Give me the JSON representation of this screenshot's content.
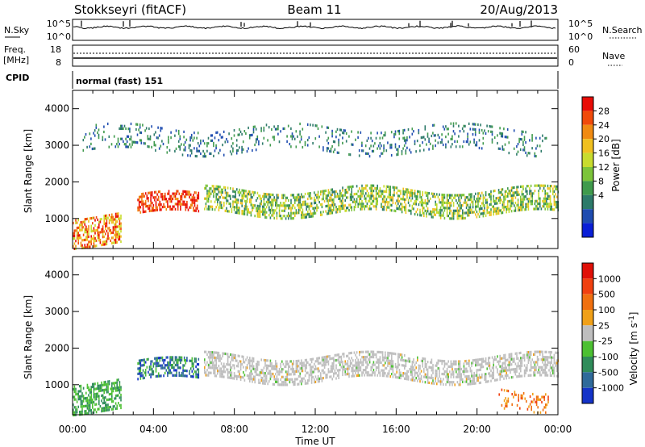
{
  "header": {
    "station": "Stokkseyri (fitACF)",
    "beam": "Beam 11",
    "date": "20/Aug/2013"
  },
  "noise_panel": {
    "left_label": "N.Sky",
    "right_label": "N.Search",
    "ticks_left": [
      "10^5",
      "10^0"
    ],
    "ticks_right": [
      "10^5",
      "10^0"
    ]
  },
  "freq_panel": {
    "left_label": "Freq.",
    "left_unit": "[MHz]",
    "right_label": "Nave",
    "ticks_left": [
      "18",
      "8"
    ],
    "ticks_right": [
      "60",
      "0"
    ]
  },
  "cpid": {
    "label": "CPID",
    "value": "normal (fast) 151"
  },
  "time_axis": {
    "label": "Time UT",
    "ticks": [
      "00:00",
      "04:00",
      "08:00",
      "12:00",
      "16:00",
      "20:00",
      "00:00"
    ]
  },
  "chart_data": [
    {
      "type": "heatmap",
      "panel": "power",
      "xlabel": "Time UT",
      "ylabel": "Slant Range [km]",
      "x_range_hours": [
        0,
        24
      ],
      "ylim": [
        180,
        4500
      ],
      "y_ticks": [
        1000,
        2000,
        3000,
        4000
      ],
      "colorbar": {
        "label": "Power [dB]",
        "ticks": [
          "4",
          "8",
          "12",
          "16",
          "20",
          "24",
          "28"
        ],
        "colors": [
          "#0a1fd6",
          "#1e4cb0",
          "#2d7a6a",
          "#3f9a4c",
          "#7cc43a",
          "#c8dc2e",
          "#f0c020",
          "#f08a12",
          "#f04a0a",
          "#e80c06"
        ]
      },
      "features": [
        {
          "name": "main echo band",
          "start_hour": 6.5,
          "end_hour": 24,
          "range_km": [
            1100,
            1800
          ],
          "power_db": [
            8,
            20
          ]
        },
        {
          "name": "strong echo patch",
          "start_hour": 3.2,
          "end_hour": 6.2,
          "range_km": [
            1100,
            1650
          ],
          "power_db": [
            24,
            32
          ]
        },
        {
          "name": "near range echoes",
          "start_hour": 0,
          "end_hour": 2.4,
          "range_km": [
            300,
            1100
          ],
          "power_db": [
            16,
            28
          ]
        },
        {
          "name": "far range echoes",
          "start_hour": 0.5,
          "end_hour": 23.5,
          "range_km": [
            2800,
            3500
          ],
          "power_db": [
            4,
            12
          ]
        }
      ]
    },
    {
      "type": "heatmap",
      "panel": "velocity",
      "xlabel": "Time UT",
      "ylabel": "Slant Range [km]",
      "x_range_hours": [
        0,
        24
      ],
      "ylim": [
        180,
        4500
      ],
      "y_ticks": [
        1000,
        2000,
        3000,
        4000
      ],
      "colorbar": {
        "label": "Velocity [m s-1]",
        "ticks": [
          "1000",
          "500",
          "100",
          "25",
          "-25",
          "-100",
          "-500",
          "-1000"
        ],
        "colors": [
          "#1433c8",
          "#2f6a9a",
          "#2f8c5a",
          "#4cc032",
          "#bebebe",
          "#f0a018",
          "#f07010",
          "#f04010",
          "#e01008"
        ]
      },
      "features": [
        {
          "name": "main echo band",
          "start_hour": 6.5,
          "end_hour": 24,
          "range_km": [
            1100,
            1800
          ],
          "velocity": "-25 to 25"
        },
        {
          "name": "strong echo patch",
          "start_hour": 3.2,
          "end_hour": 6.2,
          "range_km": [
            1100,
            1650
          ],
          "velocity": "100 to 1000"
        },
        {
          "name": "near range echoes",
          "start_hour": 0,
          "end_hour": 2.4,
          "range_km": [
            300,
            1100
          ],
          "velocity": "100 to 500"
        },
        {
          "name": "late near range echoes",
          "start_hour": 21,
          "end_hour": 23.5,
          "range_km": [
            400,
            900
          ],
          "velocity": "-100 to -500"
        }
      ]
    }
  ]
}
